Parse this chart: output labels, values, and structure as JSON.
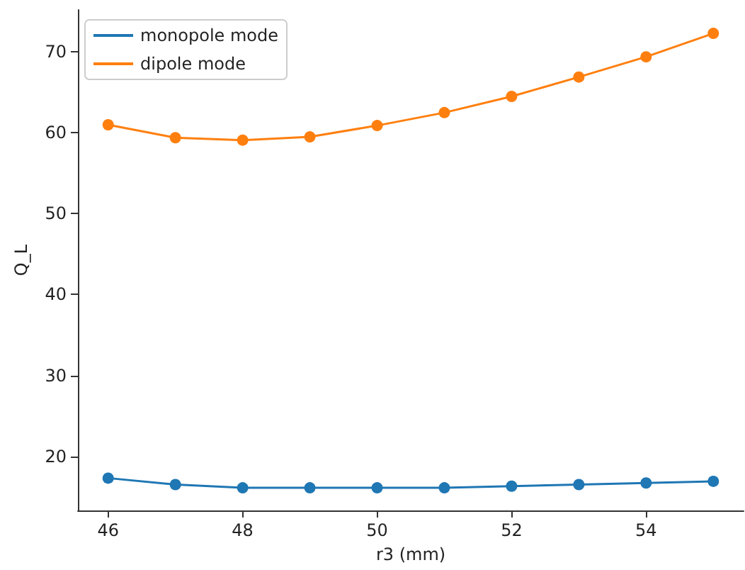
{
  "chart_data": {
    "type": "line",
    "xlabel": "r3 (mm)",
    "ylabel": "Q_L",
    "x": [
      46,
      47,
      48,
      49,
      50,
      51,
      52,
      53,
      54,
      55
    ],
    "series": [
      {
        "name": "monopole mode",
        "color": "#1f77b4",
        "values": [
          17.3,
          16.5,
          16.1,
          16.1,
          16.1,
          16.1,
          16.3,
          16.5,
          16.7,
          16.9
        ]
      },
      {
        "name": "dipole mode",
        "color": "#ff7f0e",
        "values": [
          61.0,
          59.4,
          59.1,
          59.5,
          60.9,
          62.5,
          64.5,
          66.9,
          69.4,
          72.3
        ]
      }
    ],
    "xlim": [
      45.55,
      55.45
    ],
    "xticks": [
      46,
      48,
      50,
      52,
      54
    ],
    "ylim": [
      13.3,
      75.2
    ],
    "yticks": [
      20,
      30,
      40,
      50,
      60,
      70
    ],
    "marker": "circle",
    "line_style": "solid",
    "legend": "top left",
    "grid": false
  }
}
